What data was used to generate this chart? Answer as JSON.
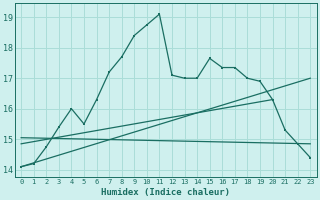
{
  "xlabel": "Humidex (Indice chaleur)",
  "bg_color": "#cff0ee",
  "grid_color": "#aaddd8",
  "line_color": "#1a6e62",
  "xlim": [
    -0.5,
    23.5
  ],
  "ylim": [
    13.75,
    19.45
  ],
  "yticks": [
    14,
    15,
    16,
    17,
    18,
    19
  ],
  "xticks": [
    0,
    1,
    2,
    3,
    4,
    5,
    6,
    7,
    8,
    9,
    10,
    11,
    12,
    13,
    14,
    15,
    16,
    17,
    18,
    19,
    20,
    21,
    22,
    23
  ],
  "main_x": [
    0,
    1,
    2,
    3,
    4,
    5,
    6,
    7,
    8,
    9,
    10,
    11,
    12,
    13,
    14,
    15,
    16,
    17,
    18,
    19,
    20,
    21,
    22,
    23
  ],
  "main_y": [
    14.1,
    14.2,
    14.75,
    15.4,
    16.0,
    15.5,
    16.3,
    17.2,
    17.7,
    18.4,
    18.75,
    19.1,
    17.1,
    17.0,
    17.0,
    17.65,
    17.35,
    17.35,
    17.0,
    16.9,
    16.3,
    15.3,
    14.85,
    14.4
  ],
  "trend1_x": [
    0,
    23
  ],
  "trend1_y": [
    14.1,
    17.0
  ],
  "trend2_x": [
    0,
    20
  ],
  "trend2_y": [
    14.85,
    16.3
  ],
  "trend3_x": [
    0,
    23
  ],
  "trend3_y": [
    15.05,
    14.85
  ]
}
